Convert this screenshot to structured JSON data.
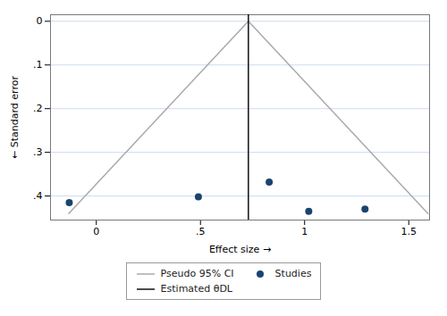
{
  "chart_data": {
    "type": "scatter",
    "xlabel": "Effect size",
    "ylabel": "Standard error",
    "xlim": [
      -0.22,
      1.6
    ],
    "ylim": [
      0.455,
      -0.015
    ],
    "xticks": [
      0,
      {
        "value": 0.5,
        "label": ".5"
      },
      1,
      1.5
    ],
    "yticks": [
      0,
      {
        "value": 0.1,
        "label": ".1"
      },
      {
        "value": 0.2,
        "label": ".2"
      },
      {
        "value": 0.3,
        "label": ".3"
      },
      {
        "value": 0.4,
        "label": ".4"
      }
    ],
    "grid": "y",
    "legend": "bottom",
    "series": [
      {
        "name": "Pseudo 95% CI",
        "type": "line",
        "color": "#aaaaaa",
        "x": [
          -0.1324,
          0.73,
          1.5924
        ],
        "values": [
          0.44,
          0.0,
          0.44
        ]
      },
      {
        "name": "Studies",
        "type": "scatter",
        "color": "#1a4470",
        "x": [
          -0.13,
          0.49,
          0.83,
          1.02,
          1.29
        ],
        "values": [
          0.415,
          0.402,
          0.368,
          0.435,
          0.43
        ]
      },
      {
        "name": "Estimated θDL",
        "type": "vline",
        "color": "#111111",
        "x": 0.73
      }
    ]
  }
}
